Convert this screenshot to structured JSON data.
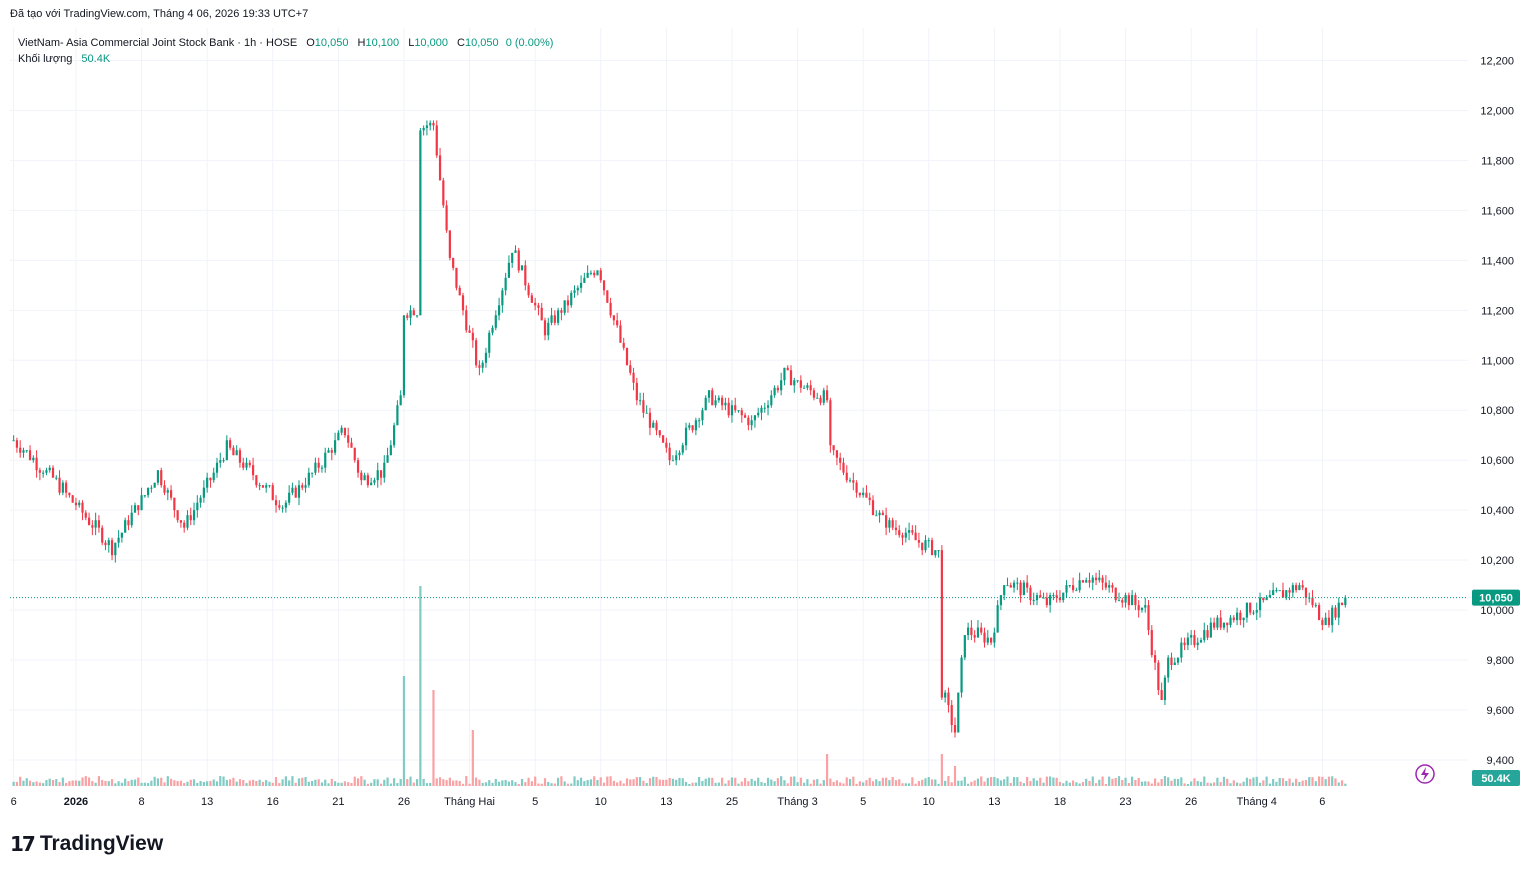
{
  "header": {
    "credit": "Đã tạo với TradingView.com, Tháng 4 06, 2026 19:33 UTC+7"
  },
  "legend": {
    "symbol": "VietNam- Asia Commercial Joint Stock Bank · 1h · HOSE",
    "o_label": "O",
    "o": "10,050",
    "h_label": "H",
    "h": "10,100",
    "l_label": "L",
    "l": "10,000",
    "c_label": "C",
    "c": "10,050",
    "change": "0 (0.00%)",
    "volume_label": "Khối lượng",
    "volume": "50.4K"
  },
  "price_badge": "10,050",
  "volume_badge": "50.4K",
  "footer": {
    "logo_text": "TradingView",
    "logo_mark": "17"
  },
  "colors": {
    "up": "#089981",
    "down": "#f23645",
    "up_vol": "#80cbc4",
    "down_vol": "#faa1a4",
    "grid": "#f0f3fa",
    "axis_text": "#131722",
    "badge_volume": "#26a69a",
    "lightning": "#9c27b0"
  },
  "chart_data": {
    "type": "candlestick",
    "title": "VietNam- Asia Commercial Joint Stock Bank · 1h · HOSE",
    "ylim": [
      9320,
      12290
    ],
    "y_ticks": [
      "12,200",
      "12,000",
      "11,800",
      "11,600",
      "11,400",
      "11,200",
      "11,000",
      "10,800",
      "10,600",
      "10,400",
      "10,200",
      "10,000",
      "9,800",
      "9,600",
      "9,400"
    ],
    "y_tick_values": [
      12200,
      12000,
      11800,
      11600,
      11400,
      11200,
      11000,
      10800,
      10600,
      10400,
      10200,
      10000,
      9800,
      9600,
      9400
    ],
    "x_ticks": [
      "6",
      "2026",
      "8",
      "13",
      "16",
      "21",
      "26",
      "Tháng Hai",
      "5",
      "10",
      "13",
      "25",
      "Tháng 3",
      "5",
      "10",
      "13",
      "18",
      "23",
      "26",
      "Tháng 4",
      "6"
    ],
    "x_tick_bar_index": [
      0,
      19,
      39,
      59,
      79,
      99,
      119,
      139,
      159,
      179,
      199,
      219,
      239,
      259,
      279,
      299,
      319,
      339,
      359,
      379,
      399
    ],
    "last_price": 10050,
    "grid": true,
    "keypoints": [
      {
        "i": 0,
        "p": 10680
      },
      {
        "i": 14,
        "p": 10500
      },
      {
        "i": 30,
        "p": 10250
      },
      {
        "i": 44,
        "p": 10550
      },
      {
        "i": 52,
        "p": 10330
      },
      {
        "i": 65,
        "p": 10650
      },
      {
        "i": 82,
        "p": 10420
      },
      {
        "i": 92,
        "p": 10560
      },
      {
        "i": 101,
        "p": 10720
      },
      {
        "i": 106,
        "p": 10520
      },
      {
        "i": 113,
        "p": 10560
      },
      {
        "i": 118,
        "p": 10850
      },
      {
        "i": 119,
        "p": 11200
      },
      {
        "i": 123,
        "p": 11200
      },
      {
        "i": 124,
        "p": 11940
      },
      {
        "i": 128,
        "p": 11940
      },
      {
        "i": 133,
        "p": 11400
      },
      {
        "i": 142,
        "p": 10950
      },
      {
        "i": 152,
        "p": 11450
      },
      {
        "i": 162,
        "p": 11120
      },
      {
        "i": 178,
        "p": 11380
      },
      {
        "i": 190,
        "p": 10850
      },
      {
        "i": 200,
        "p": 10600
      },
      {
        "i": 212,
        "p": 10850
      },
      {
        "i": 225,
        "p": 10750
      },
      {
        "i": 235,
        "p": 10940
      },
      {
        "i": 248,
        "p": 10840
      },
      {
        "i": 249,
        "p": 10630
      },
      {
        "i": 265,
        "p": 10360
      },
      {
        "i": 282,
        "p": 10230
      },
      {
        "i": 283,
        "p": 9680
      },
      {
        "i": 287,
        "p": 9510
      },
      {
        "i": 290,
        "p": 9920
      },
      {
        "i": 298,
        "p": 9880
      },
      {
        "i": 302,
        "p": 10120
      },
      {
        "i": 315,
        "p": 10030
      },
      {
        "i": 327,
        "p": 10140
      },
      {
        "i": 345,
        "p": 10000
      },
      {
        "i": 350,
        "p": 9620
      },
      {
        "i": 352,
        "p": 9800
      },
      {
        "i": 366,
        "p": 9940
      },
      {
        "i": 378,
        "p": 10010
      },
      {
        "i": 392,
        "p": 10100
      },
      {
        "i": 400,
        "p": 9950
      },
      {
        "i": 406,
        "p": 10050
      }
    ],
    "volume_spikes": [
      {
        "i": 119,
        "v": 0.55
      },
      {
        "i": 124,
        "v": 1.0
      },
      {
        "i": 128,
        "v": 0.48
      },
      {
        "i": 140,
        "v": 0.28
      },
      {
        "i": 248,
        "v": 0.16
      },
      {
        "i": 283,
        "v": 0.16
      },
      {
        "i": 287,
        "v": 0.1
      }
    ],
    "volume_max_label": "50.4K"
  }
}
